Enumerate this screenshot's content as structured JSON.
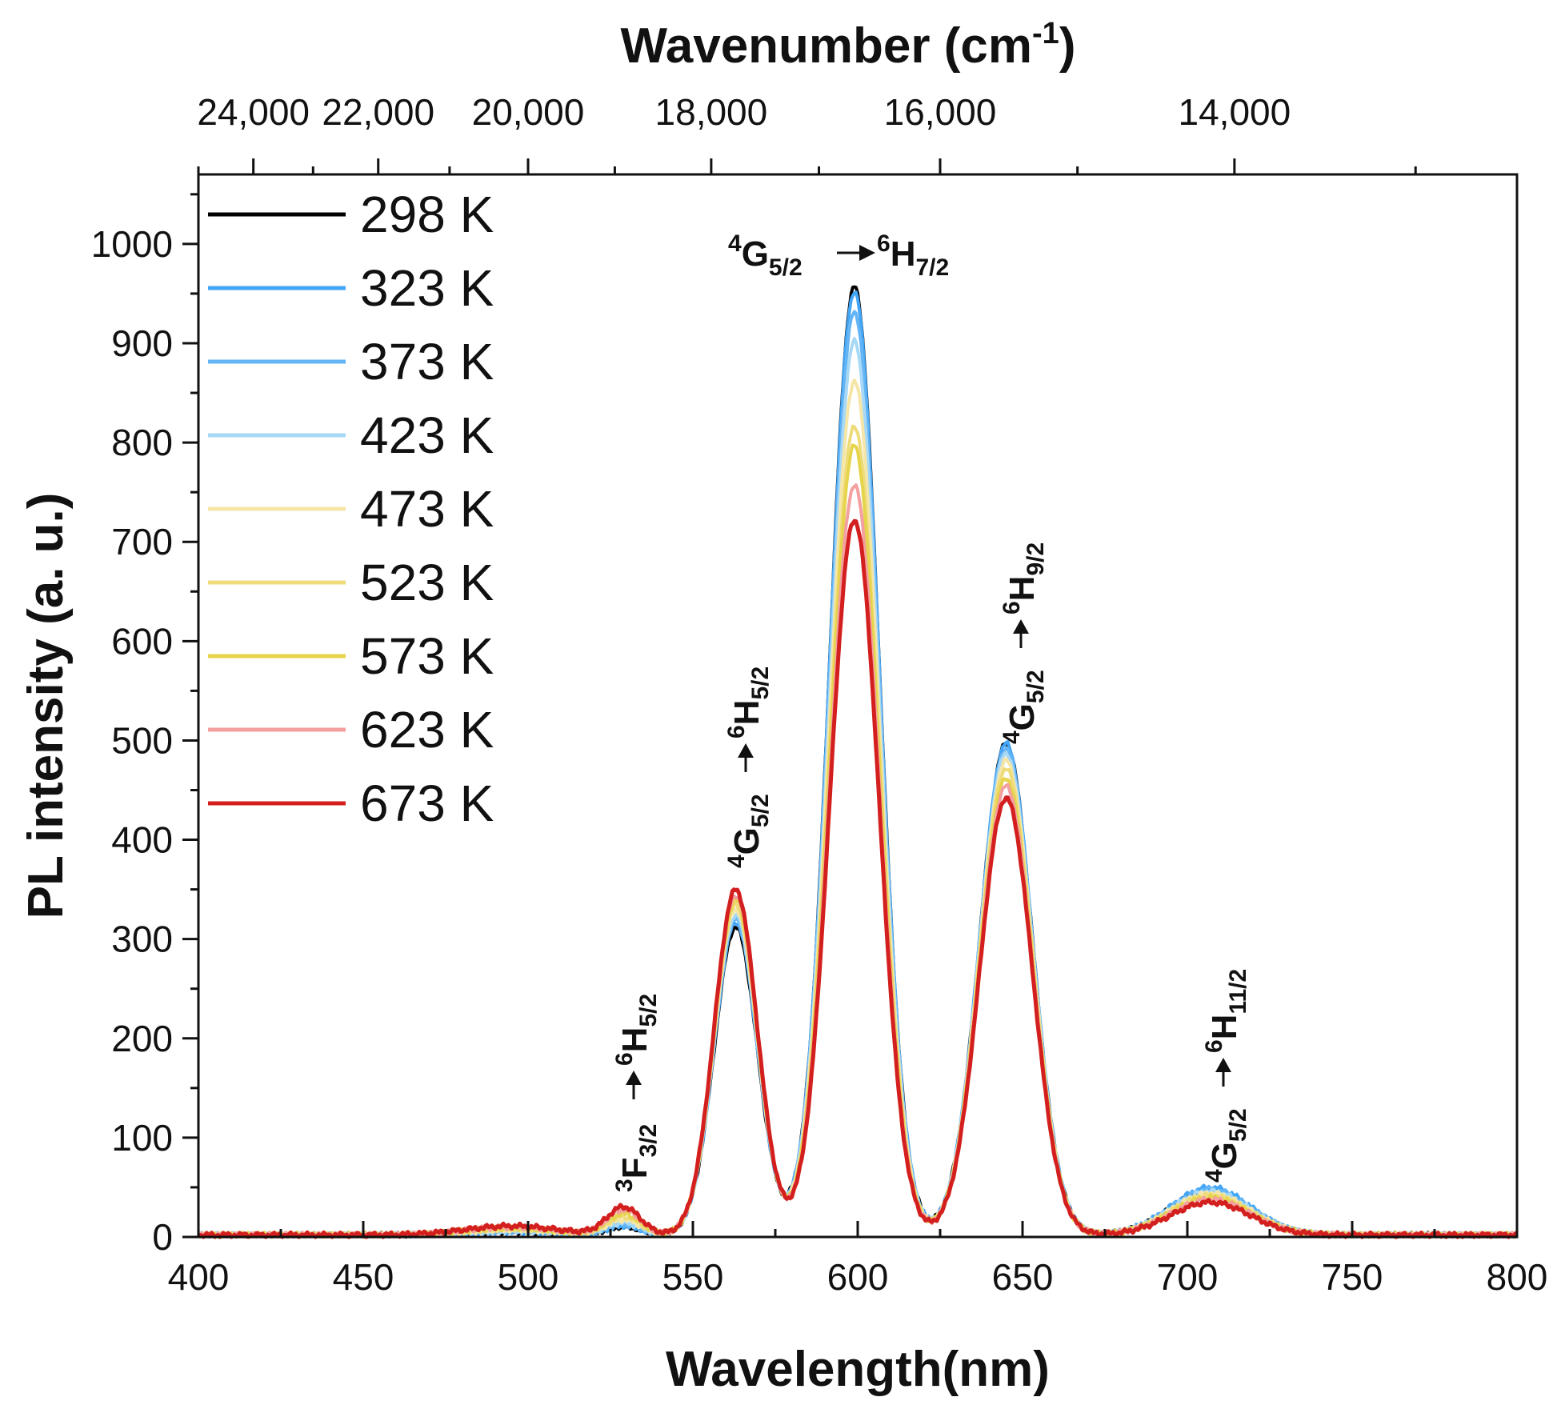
{
  "chart_data": {
    "type": "line",
    "title": "",
    "xlabel": "Wavelength(nm)",
    "ylabel": "PL intensity (a. u.)",
    "top_xlabel": "Wavenumber (cm-1)",
    "top_xlabel_base": "Wavenumber (cm",
    "top_xlabel_sup": "-1",
    "top_xlabel_end": ")",
    "xlim": [
      400,
      800
    ],
    "ylim": [
      0,
      1070
    ],
    "x_ticks": [
      400,
      450,
      500,
      550,
      600,
      650,
      700,
      750,
      800
    ],
    "x_tick_labels": [
      "400",
      "450",
      "500",
      "550",
      "600",
      "650",
      "700",
      "750",
      "800"
    ],
    "y_ticks": [
      0,
      100,
      200,
      300,
      400,
      500,
      600,
      700,
      800,
      900,
      1000
    ],
    "y_tick_labels": [
      "0",
      "100",
      "200",
      "300",
      "400",
      "500",
      "600",
      "700",
      "800",
      "900",
      "1000"
    ],
    "top_ticks": [
      24000,
      22000,
      20000,
      18000,
      16000,
      14000
    ],
    "top_tick_labels": [
      "24,000",
      "22,000",
      "20,000",
      "18,000",
      "16,000",
      "14,000"
    ],
    "legend_position": "top-left",
    "series": [
      {
        "name": "298 K",
        "color": "#000000",
        "peaks": [
          3,
          8,
          310,
          955,
          495,
          45
        ]
      },
      {
        "name": "323 K",
        "color": "#42a5f5",
        "peaks": [
          3,
          9,
          315,
          950,
          495,
          48
        ]
      },
      {
        "name": "373 K",
        "color": "#64b5f6",
        "peaks": [
          4,
          10,
          318,
          930,
          490,
          46
        ]
      },
      {
        "name": "423 K",
        "color": "#a7d8f5",
        "peaks": [
          4,
          12,
          322,
          900,
          485,
          44
        ]
      },
      {
        "name": "473 K",
        "color": "#f5e6a8",
        "peaks": [
          5,
          15,
          328,
          860,
          478,
          42
        ]
      },
      {
        "name": "523 K",
        "color": "#eedc7a",
        "peaks": [
          6,
          18,
          333,
          815,
          470,
          40
        ]
      },
      {
        "name": "573 K",
        "color": "#e6d44c",
        "peaks": [
          7,
          21,
          338,
          795,
          460,
          38
        ]
      },
      {
        "name": "623 K",
        "color": "#f4a0a0",
        "peaks": [
          8,
          25,
          342,
          755,
          452,
          36
        ]
      },
      {
        "name": "673 K",
        "color": "#d41f1f",
        "peaks": [
          9,
          28,
          348,
          720,
          440,
          33
        ]
      }
    ],
    "peak_centers_nm": [
      495,
      529,
      563,
      599,
      645,
      707
    ],
    "peak_widths_nm": [
      14,
      5,
      6.5,
      7.5,
      8,
      12
    ],
    "annotations": [
      {
        "id": "t1",
        "text": "3F3/2→6H5/2",
        "x_nm": 528,
        "y": 30
      },
      {
        "id": "t2",
        "text": "4G5/2→6H5/2",
        "x_nm": 563,
        "y": 350
      },
      {
        "id": "t3",
        "text": "4G5/2→6H7/2",
        "x_nm": 599,
        "y": 970
      },
      {
        "id": "t4",
        "text": "4G5/2→6H9/2",
        "x_nm": 645,
        "y": 495
      },
      {
        "id": "t5",
        "text": "4G5/2→6H11/2",
        "x_nm": 707,
        "y": 45
      }
    ]
  },
  "annotation_parts": {
    "t1": {
      "a_sup": "3",
      "a_main": "F",
      "a_sub": "3/2",
      "b_sup": "6",
      "b_main": "H",
      "b_sub": "5/2"
    },
    "t2": {
      "a_sup": "4",
      "a_main": "G",
      "a_sub": "5/2",
      "b_sup": "6",
      "b_main": "H",
      "b_sub": "5/2"
    },
    "t3": {
      "a_sup": "4",
      "a_main": "G",
      "a_sub": "5/2",
      "b_sup": "6",
      "b_main": "H",
      "b_sub": "7/2"
    },
    "t4": {
      "a_sup": "4",
      "a_main": "G",
      "a_sub": "5/2",
      "b_sup": "6",
      "b_main": "H",
      "b_sub": "9/2"
    },
    "t5": {
      "a_sup": "4",
      "a_main": "G",
      "a_sub": "5/2",
      "b_sup": "6",
      "b_main": "H",
      "b_sub": "11/2"
    }
  }
}
